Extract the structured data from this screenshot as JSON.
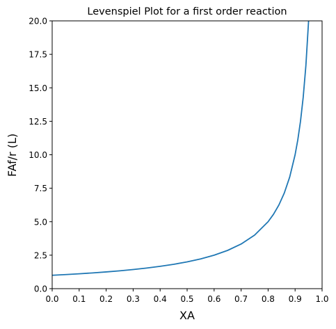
{
  "chart_data": {
    "type": "line",
    "title": "Levenspiel Plot for a first order reaction",
    "xlabel": "XA",
    "ylabel": "FAf/r (L)",
    "xlim": [
      0.0,
      1.0
    ],
    "ylim": [
      0.0,
      20.0
    ],
    "xticks": [
      "0.0",
      "0.1",
      "0.2",
      "0.3",
      "0.4",
      "0.5",
      "0.6",
      "0.7",
      "0.8",
      "0.9",
      "1.0"
    ],
    "yticks": [
      "0.0",
      "2.5",
      "5.0",
      "7.5",
      "10.0",
      "12.5",
      "15.0",
      "17.5",
      "20.0"
    ],
    "grid": false,
    "legend": "none",
    "series": [
      {
        "color": "#1f77b4",
        "x": [
          0.0,
          0.05,
          0.1,
          0.15,
          0.2,
          0.25,
          0.3,
          0.35,
          0.4,
          0.45,
          0.5,
          0.55,
          0.6,
          0.65,
          0.7,
          0.75,
          0.8,
          0.82,
          0.84,
          0.86,
          0.88,
          0.9,
          0.91,
          0.92,
          0.93,
          0.94,
          0.95
        ],
        "values": [
          1.0,
          1.053,
          1.111,
          1.176,
          1.25,
          1.333,
          1.429,
          1.538,
          1.667,
          1.818,
          2.0,
          2.222,
          2.5,
          2.857,
          3.333,
          4.0,
          5.0,
          5.556,
          6.25,
          7.143,
          8.333,
          10.0,
          11.111,
          12.5,
          14.286,
          16.667,
          20.0
        ]
      }
    ]
  }
}
